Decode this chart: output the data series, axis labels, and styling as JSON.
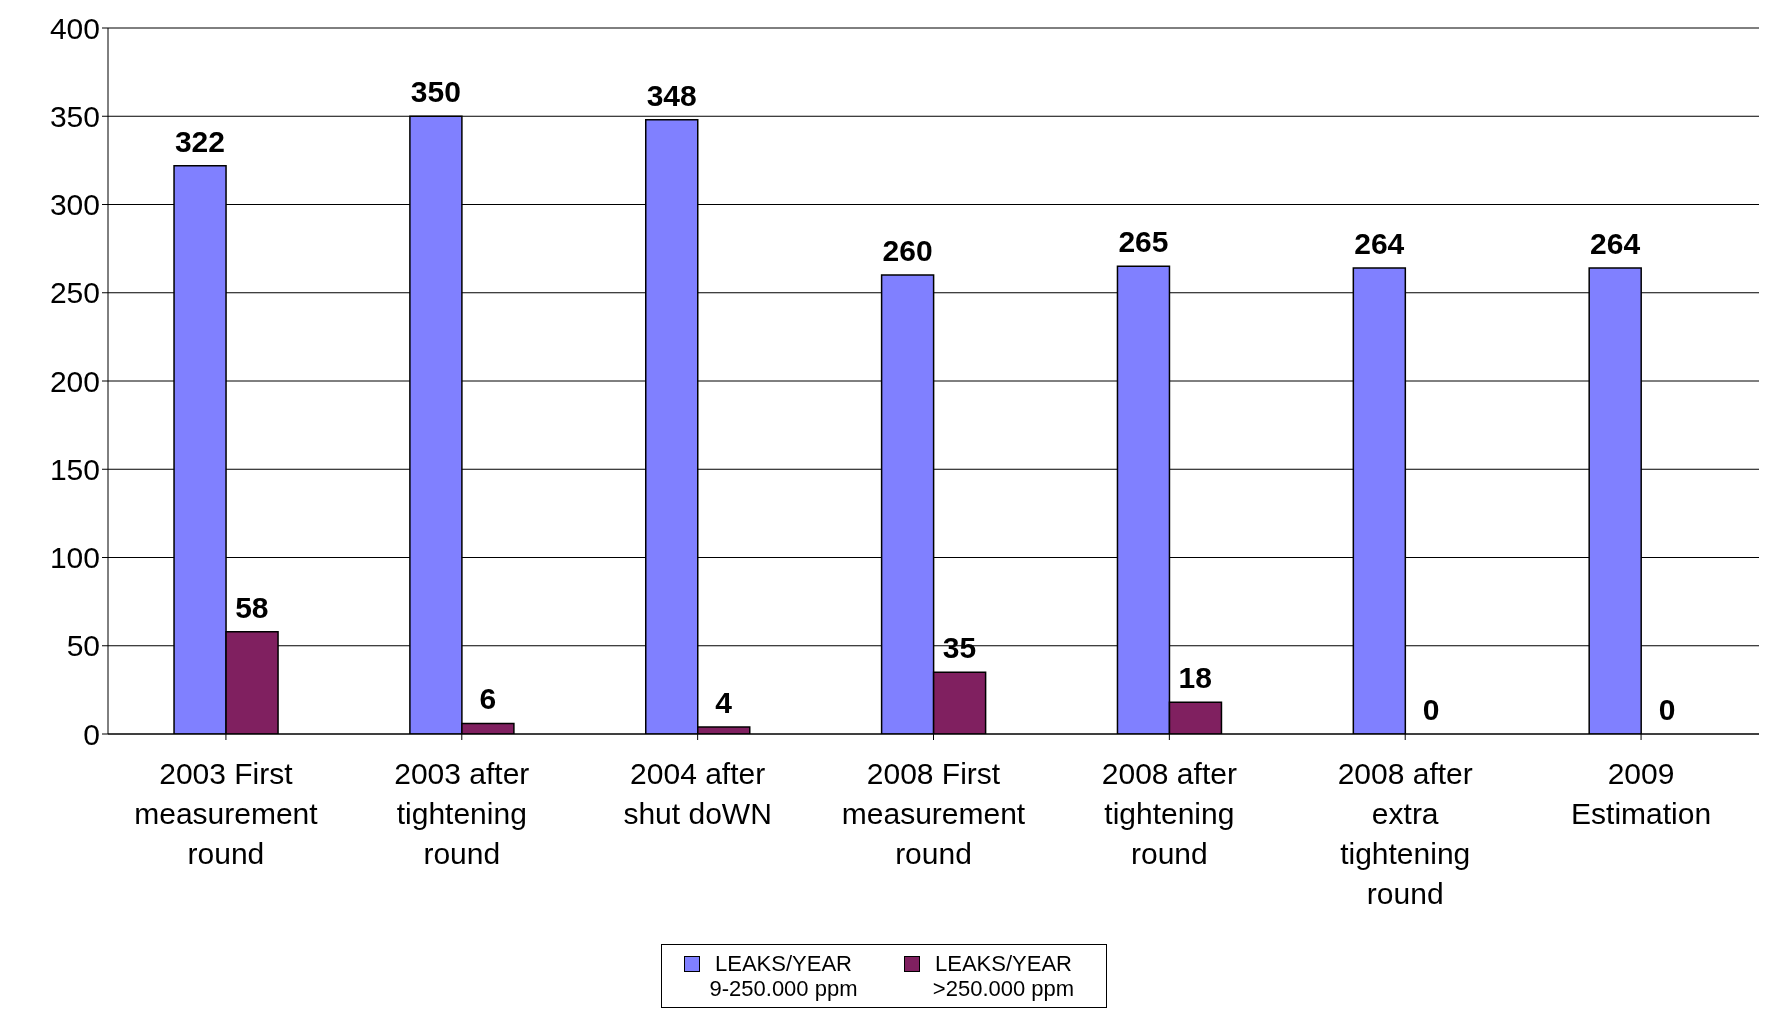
{
  "chart_data": {
    "type": "bar",
    "categories": [
      "2003 First measurement round",
      "2003 after tightening round",
      "2004 after shut doWN",
      "2008 First measurement round",
      "2008 after tightening round",
      "2008 after extra tightening round",
      "2009 Estimation"
    ],
    "series": [
      {
        "name": "LEAKS/YEAR 9-250.000 ppm",
        "color": "#8080ff",
        "values": [
          322,
          350,
          348,
          260,
          265,
          264,
          264
        ]
      },
      {
        "name": "LEAKS/YEAR >250.000 ppm",
        "color": "#802060",
        "values": [
          58,
          6,
          4,
          35,
          18,
          0,
          0
        ]
      }
    ],
    "ylim": [
      0,
      400
    ],
    "yticks": [
      0,
      50,
      100,
      150,
      200,
      250,
      300,
      350,
      400
    ],
    "grid": "y",
    "legend": "bottom",
    "data_labels": true
  }
}
